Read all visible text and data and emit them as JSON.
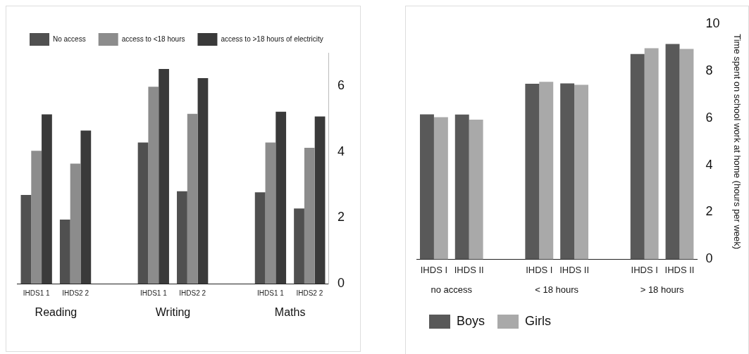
{
  "chart_data": [
    {
      "type": "bar",
      "categories": [
        "IHDS1 1",
        "IHDS2 2",
        null,
        "IHDS1 1",
        "IHDS2 2",
        null,
        "IHDS1 1",
        "IHDS2 2"
      ],
      "series": [
        {
          "name": "No access",
          "color": "#505050",
          "values": [
            2.69,
            1.94,
            null,
            4.28,
            2.8,
            null,
            2.77,
            2.28
          ]
        },
        {
          "name": "access to <18 hours",
          "color": "#8c8c8c",
          "values": [
            4.03,
            3.64,
            null,
            5.97,
            5.15,
            null,
            4.28,
            4.12
          ]
        },
        {
          "name": "access to >18 hours of electricity",
          "color": "#3a3a3a",
          "values": [
            5.13,
            4.64,
            null,
            6.51,
            6.23,
            null,
            5.21,
            5.07
          ]
        }
      ],
      "annotations": [
        "Reading",
        "Writing",
        "Maths"
      ],
      "ylim": [
        0,
        7
      ],
      "yticks": [
        0,
        2,
        4,
        6
      ],
      "legend": "top"
    },
    {
      "type": "bar",
      "categories": [
        "IHDS I",
        "IHDS II",
        null,
        "IHDS I",
        "IHDS II",
        null,
        "IHDS I",
        "IHDS II"
      ],
      "series": [
        {
          "name": "Boys",
          "color": "#595959",
          "values": [
            6.16,
            6.15,
            null,
            7.46,
            7.47,
            null,
            8.72,
            9.15
          ]
        },
        {
          "name": "Girls",
          "color": "#a9a9a9",
          "values": [
            6.04,
            5.93,
            null,
            7.54,
            7.41,
            null,
            8.97,
            8.94
          ]
        }
      ],
      "annotations": [
        "no access",
        "< 18 hours",
        "> 18 hours"
      ],
      "ylabel": "Time spent on school work at home (hours per week)",
      "ylim": [
        0,
        10
      ],
      "yticks": [
        0,
        2,
        4,
        6,
        8,
        10
      ],
      "legend": "bottom"
    }
  ]
}
